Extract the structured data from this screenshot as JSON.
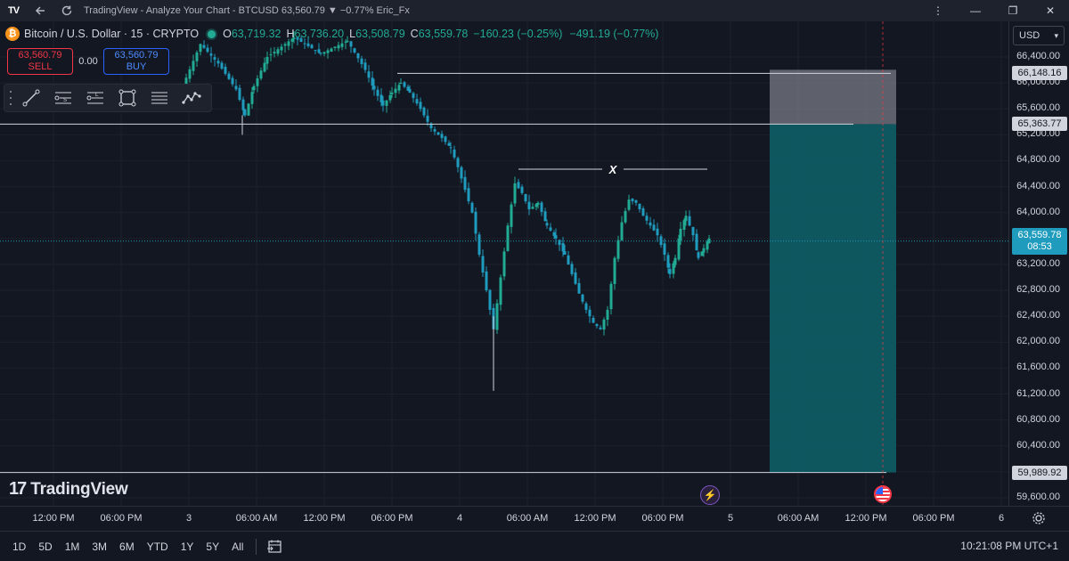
{
  "titlebar": {
    "logo": "TV",
    "title": "TradingView - Analyze Your Chart - BTCUSD 63,560.79 ▼ −0.77% Eric_Fx"
  },
  "legend": {
    "btc_symbol": "₿",
    "symbol": "Bitcoin / U.S. Dollar · 15 · CRYPTO",
    "o_label": "O",
    "o_value": "63,719.32",
    "h_label": "H",
    "h_value": "63,736.20",
    "l_label": "L",
    "l_value": "63,508.79",
    "c_label": "C",
    "c_value": "63,559.78",
    "change": "−160.23 (−0.25%)",
    "change2": "−491.19 (−0.77%)"
  },
  "trade": {
    "sell_price": "63,560.79",
    "sell_label": "SELL",
    "spread": "0.00",
    "buy_price": "63,560.79",
    "buy_label": "BUY"
  },
  "toolbar": {
    "tools": [
      "trendline-icon",
      "fib-s-icon",
      "fib-l-icon",
      "rectangle-icon",
      "horizontal-lines-icon",
      "pattern-icon"
    ]
  },
  "watermark": {
    "mark": "17",
    "text": "TradingView"
  },
  "annotation": {
    "label": "X"
  },
  "price_axis": {
    "currency": "USD",
    "ticks": [
      "66,400.00",
      "66,000.00",
      "65,600.00",
      "65,200.00",
      "64,800.00",
      "64,400.00",
      "64,000.00",
      "63,600.00",
      "63,200.00",
      "62,800.00",
      "62,400.00",
      "62,000.00",
      "61,600.00",
      "61,200.00",
      "60,800.00",
      "60,400.00",
      "60,000.00",
      "59,600.00"
    ],
    "tp_label": "66,148.16",
    "entry_label": "65,363.77",
    "current_price": "63,559.78",
    "countdown": "08:53",
    "sl_label": "59,989.92"
  },
  "time_axis": {
    "ticks": [
      "12:00 PM",
      "06:00 PM",
      "3",
      "06:00 AM",
      "12:00 PM",
      "06:00 PM",
      "4",
      "06:00 AM",
      "12:00 PM",
      "06:00 PM",
      "5",
      "06:00 AM",
      "12:00 PM",
      "06:00 PM",
      "6"
    ]
  },
  "bottom_bar": {
    "ranges": [
      "1D",
      "5D",
      "1M",
      "3M",
      "6M",
      "YTD",
      "1Y",
      "5Y",
      "All"
    ],
    "clock": "10:21:08 PM UTC+1"
  },
  "colors": {
    "background": "#131722",
    "up": "#22ab94",
    "down": "#089981",
    "accent": "#2962ff",
    "sell": "#f23645",
    "target_zone": "#787b86",
    "stop_zone": "#0e5b63",
    "price_label_bg": "#1e9bbd"
  }
}
